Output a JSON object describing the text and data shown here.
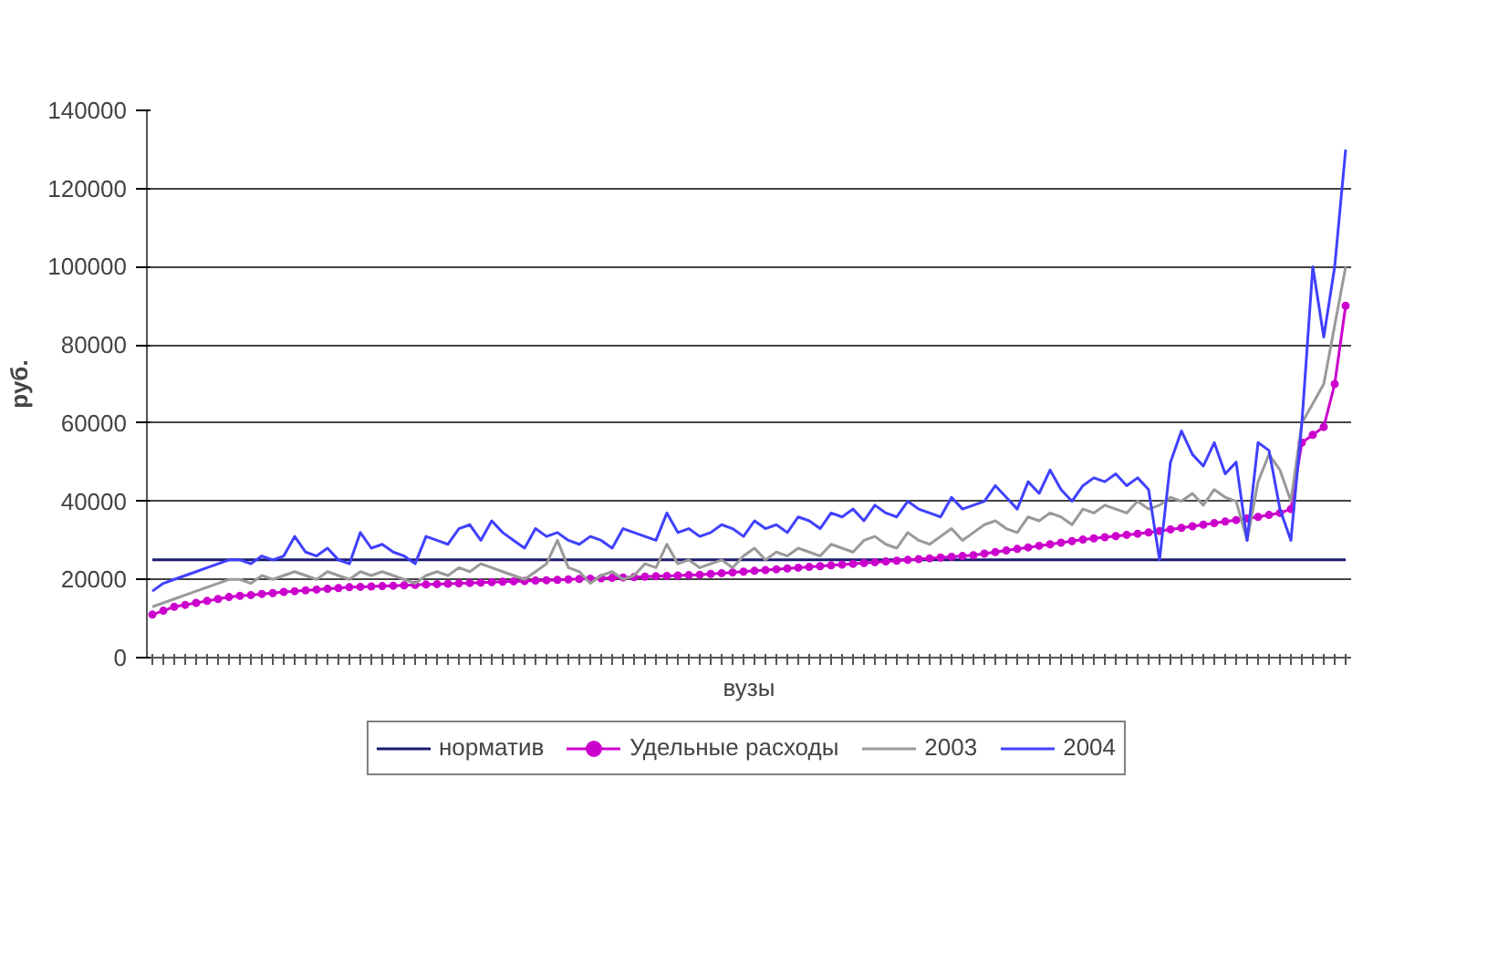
{
  "chart_data": {
    "type": "line",
    "xlabel": "вузы",
    "ylabel": "руб.",
    "categories": [
      null,
      null,
      null,
      null,
      null,
      null,
      null,
      null,
      null,
      null,
      null,
      null,
      null,
      null,
      null,
      null,
      null,
      null,
      null,
      null,
      null,
      null,
      null,
      null,
      null,
      null,
      null,
      null,
      null,
      null,
      null,
      null,
      null,
      null,
      null,
      null,
      null,
      null,
      null,
      null,
      null,
      null,
      null,
      null,
      null,
      null,
      null,
      null,
      null,
      null,
      null,
      null,
      null,
      null,
      null,
      null,
      null,
      null,
      null,
      null,
      null,
      null,
      null,
      null,
      null,
      null,
      null,
      null,
      null,
      null,
      null,
      null,
      null,
      null,
      null,
      null,
      null,
      null,
      null,
      null,
      null,
      null,
      null,
      null,
      null,
      null,
      null,
      null,
      null,
      null,
      null,
      null,
      null,
      null,
      null,
      null,
      null,
      null,
      null,
      null,
      null,
      null,
      null,
      null,
      null,
      null,
      null,
      null,
      null,
      null
    ],
    "ylim": [
      0,
      140000
    ],
    "yticks": [
      0,
      20000,
      40000,
      60000,
      80000,
      100000,
      120000,
      140000
    ],
    "grid": "y",
    "legend": "bottom",
    "line_style": "solid",
    "series": [
      {
        "name": "норматив",
        "color": "#1a1a6e",
        "marker": "none",
        "values": [
          25000,
          25000,
          25000,
          25000,
          25000,
          25000,
          25000,
          25000,
          25000,
          25000,
          25000,
          25000,
          25000,
          25000,
          25000,
          25000,
          25000,
          25000,
          25000,
          25000,
          25000,
          25000,
          25000,
          25000,
          25000,
          25000,
          25000,
          25000,
          25000,
          25000,
          25000,
          25000,
          25000,
          25000,
          25000,
          25000,
          25000,
          25000,
          25000,
          25000,
          25000,
          25000,
          25000,
          25000,
          25000,
          25000,
          25000,
          25000,
          25000,
          25000,
          25000,
          25000,
          25000,
          25000,
          25000,
          25000,
          25000,
          25000,
          25000,
          25000,
          25000,
          25000,
          25000,
          25000,
          25000,
          25000,
          25000,
          25000,
          25000,
          25000,
          25000,
          25000,
          25000,
          25000,
          25000,
          25000,
          25000,
          25000,
          25000,
          25000,
          25000,
          25000,
          25000,
          25000,
          25000,
          25000,
          25000,
          25000,
          25000,
          25000,
          25000,
          25000,
          25000,
          25000,
          25000,
          25000,
          25000,
          25000,
          25000,
          25000,
          25000,
          25000,
          25000,
          25000,
          25000,
          25000,
          25000,
          25000,
          25000,
          25000
        ]
      },
      {
        "name": "Удельные расходы",
        "color": "#cc00cc",
        "marker": "circle",
        "values": [
          11000,
          12000,
          13000,
          13500,
          14000,
          14500,
          15000,
          15500,
          15800,
          16000,
          16300,
          16500,
          16800,
          17000,
          17200,
          17400,
          17600,
          17800,
          18000,
          18100,
          18200,
          18300,
          18400,
          18500,
          18600,
          18700,
          18800,
          18900,
          19000,
          19100,
          19200,
          19300,
          19400,
          19500,
          19600,
          19700,
          19800,
          19900,
          20000,
          20100,
          20200,
          20300,
          20400,
          20500,
          20600,
          20700,
          20800,
          20900,
          21000,
          21100,
          21200,
          21400,
          21600,
          21800,
          22000,
          22200,
          22400,
          22600,
          22800,
          23000,
          23200,
          23400,
          23600,
          23800,
          24000,
          24200,
          24400,
          24600,
          24800,
          25000,
          25200,
          25400,
          25600,
          25800,
          26000,
          26200,
          26600,
          27000,
          27400,
          27800,
          28200,
          28600,
          29000,
          29400,
          29800,
          30200,
          30500,
          30800,
          31100,
          31400,
          31700,
          32000,
          32400,
          32800,
          33200,
          33600,
          34000,
          34400,
          34800,
          35200,
          35600,
          36000,
          36500,
          37000,
          38000,
          55000,
          57000,
          59000,
          70000,
          90000
        ]
      },
      {
        "name": "2003",
        "color": "#999999",
        "marker": "none",
        "values": [
          13000,
          14000,
          15000,
          16000,
          17000,
          18000,
          19000,
          20000,
          20000,
          19000,
          21000,
          20000,
          21000,
          22000,
          21000,
          20000,
          22000,
          21000,
          20000,
          22000,
          21000,
          22000,
          21000,
          20000,
          19000,
          21000,
          22000,
          21000,
          23000,
          22000,
          24000,
          23000,
          22000,
          21000,
          20000,
          22000,
          24000,
          30000,
          23000,
          22000,
          19000,
          21000,
          22000,
          20000,
          21000,
          24000,
          23000,
          29000,
          24000,
          25000,
          23000,
          24000,
          25000,
          23000,
          26000,
          28000,
          25000,
          27000,
          26000,
          28000,
          27000,
          26000,
          29000,
          28000,
          27000,
          30000,
          31000,
          29000,
          28000,
          32000,
          30000,
          29000,
          31000,
          33000,
          30000,
          32000,
          34000,
          35000,
          33000,
          32000,
          36000,
          35000,
          37000,
          36000,
          34000,
          38000,
          37000,
          39000,
          38000,
          37000,
          40000,
          38000,
          39000,
          41000,
          40000,
          42000,
          39000,
          43000,
          41000,
          40000,
          30000,
          45000,
          52000,
          48000,
          40000,
          60000,
          65000,
          70000,
          85000,
          100000
        ]
      },
      {
        "name": "2004",
        "color": "#4040ff",
        "marker": "none",
        "values": [
          17000,
          19000,
          20000,
          21000,
          22000,
          23000,
          24000,
          25000,
          25000,
          24000,
          26000,
          25000,
          26000,
          31000,
          27000,
          26000,
          28000,
          25000,
          24000,
          32000,
          28000,
          29000,
          27000,
          26000,
          24000,
          31000,
          30000,
          29000,
          33000,
          34000,
          30000,
          35000,
          32000,
          30000,
          28000,
          33000,
          31000,
          32000,
          30000,
          29000,
          31000,
          30000,
          28000,
          33000,
          32000,
          31000,
          30000,
          37000,
          32000,
          33000,
          31000,
          32000,
          34000,
          33000,
          31000,
          35000,
          33000,
          34000,
          32000,
          36000,
          35000,
          33000,
          37000,
          36000,
          38000,
          35000,
          39000,
          37000,
          36000,
          40000,
          38000,
          37000,
          36000,
          41000,
          38000,
          39000,
          40000,
          44000,
          41000,
          38000,
          45000,
          42000,
          48000,
          43000,
          40000,
          44000,
          46000,
          45000,
          47000,
          44000,
          46000,
          43000,
          25000,
          50000,
          58000,
          52000,
          49000,
          55000,
          47000,
          50000,
          30000,
          55000,
          53000,
          38000,
          30000,
          60000,
          100000,
          82000,
          100000,
          130000
        ]
      }
    ]
  }
}
